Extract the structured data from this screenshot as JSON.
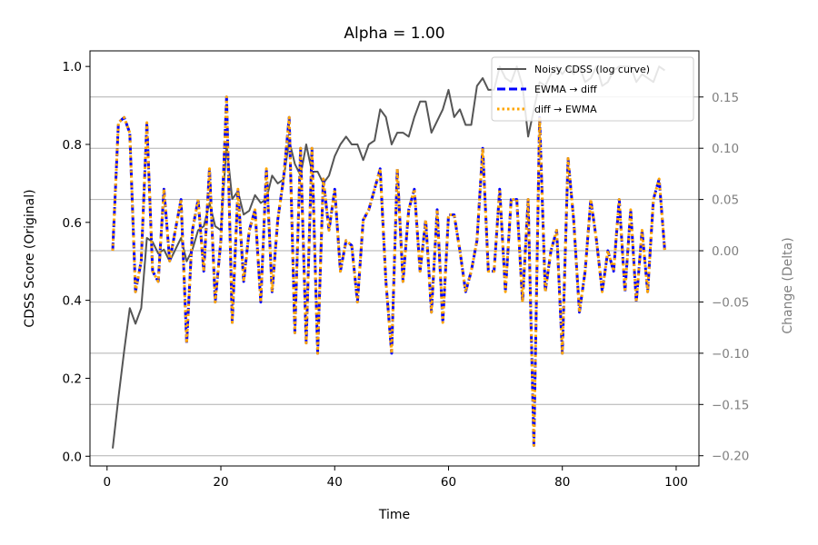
{
  "chart_data": {
    "type": "line",
    "title": "Alpha = 1.00",
    "xlabel": "Time",
    "ylabel": "CDSS Score (Original)",
    "y2label": "Change (Delta)",
    "xlim": [
      -3,
      104
    ],
    "ylim": [
      -0.025,
      1.04
    ],
    "y2lim": [
      -0.21,
      0.195
    ],
    "xticks": [
      0,
      20,
      40,
      60,
      80,
      100
    ],
    "yticks": [
      0.0,
      0.2,
      0.4,
      0.6,
      0.8,
      1.0
    ],
    "y2ticks": [
      -0.2,
      -0.15,
      -0.1,
      -0.05,
      0.0,
      0.05,
      0.1,
      0.15
    ],
    "xtick_labels": [
      "0",
      "20",
      "40",
      "60",
      "80",
      "100"
    ],
    "ytick_labels": [
      "0.0",
      "0.2",
      "0.4",
      "0.6",
      "0.8",
      "1.0"
    ],
    "y2tick_labels": [
      "−0.20",
      "−0.15",
      "−0.10",
      "−0.05",
      "0.00",
      "0.05",
      "0.10",
      "0.15"
    ],
    "grid": "horizontal, on right axis ticks",
    "legend_placement": "upper right",
    "colors": {
      "noisy": "#555555",
      "ewma_diff": "#0000ff",
      "diff_ewma": "#ffa500",
      "right_axis": "#808080"
    },
    "series": [
      {
        "name": "Noisy CDSS (log curve)",
        "axis": "left",
        "x": [
          1,
          2,
          3,
          4,
          5,
          6,
          7,
          8,
          9,
          10,
          11,
          12,
          13,
          14,
          15,
          16,
          17,
          18,
          19,
          20,
          21,
          22,
          23,
          24,
          25,
          26,
          27,
          28,
          29,
          30,
          31,
          32,
          33,
          34,
          35,
          36,
          37,
          38,
          39,
          40,
          41,
          42,
          43,
          44,
          45,
          46,
          47,
          48,
          49,
          50,
          51,
          52,
          53,
          54,
          55,
          56,
          57,
          58,
          59,
          60,
          61,
          62,
          63,
          64,
          65,
          66,
          67,
          68,
          69,
          70,
          71,
          72,
          73,
          74,
          75,
          76,
          77,
          78,
          79,
          80,
          81,
          82,
          83,
          84,
          85,
          86,
          87,
          88,
          89,
          90,
          91,
          92,
          93,
          94,
          95,
          96,
          97,
          98
        ],
        "y": [
          0.02,
          0.15,
          0.27,
          0.38,
          0.34,
          0.38,
          0.56,
          0.55,
          0.52,
          0.53,
          0.5,
          0.53,
          0.56,
          0.5,
          0.53,
          0.58,
          0.59,
          0.65,
          0.59,
          0.58,
          0.8,
          0.66,
          0.68,
          0.62,
          0.63,
          0.67,
          0.65,
          0.66,
          0.72,
          0.7,
          0.71,
          0.81,
          0.75,
          0.72,
          0.8,
          0.73,
          0.73,
          0.7,
          0.72,
          0.77,
          0.8,
          0.82,
          0.8,
          0.8,
          0.76,
          0.8,
          0.81,
          0.89,
          0.87,
          0.8,
          0.83,
          0.83,
          0.82,
          0.87,
          0.91,
          0.91,
          0.83,
          0.86,
          0.89,
          0.94,
          0.87,
          0.89,
          0.85,
          0.85,
          0.95,
          0.97,
          0.94,
          0.94,
          1.0,
          0.97,
          0.96,
          1.0,
          0.95,
          0.82,
          0.89,
          0.96,
          0.95,
          0.98,
          1.0,
          0.98,
          1.0,
          0.98,
          1.0,
          0.96,
          0.97,
          1.0,
          0.95,
          0.96,
          0.99,
          1.0,
          1.0,
          1.0,
          0.96,
          0.98,
          0.97,
          0.96,
          1.0,
          0.99
        ]
      },
      {
        "name": "EWMA → diff",
        "axis": "right",
        "x": [
          1,
          2,
          3,
          4,
          5,
          6,
          7,
          8,
          9,
          10,
          11,
          12,
          13,
          14,
          15,
          16,
          17,
          18,
          19,
          20,
          21,
          22,
          23,
          24,
          25,
          26,
          27,
          28,
          29,
          30,
          31,
          32,
          33,
          34,
          35,
          36,
          37,
          38,
          39,
          40,
          41,
          42,
          43,
          44,
          45,
          46,
          47,
          48,
          49,
          50,
          51,
          52,
          53,
          54,
          55,
          56,
          57,
          58,
          59,
          60,
          61,
          62,
          63,
          64,
          65,
          66,
          67,
          68,
          69,
          70,
          71,
          72,
          73,
          74,
          75,
          76,
          77,
          78,
          79,
          80,
          81,
          82,
          83,
          84,
          85,
          86,
          87,
          88,
          89,
          90,
          91,
          92,
          93,
          94,
          95,
          96,
          97,
          98
        ],
        "y": [
          0.0,
          0.125,
          0.13,
          0.115,
          -0.04,
          -0.01,
          0.125,
          -0.02,
          -0.03,
          0.06,
          -0.01,
          0.02,
          0.05,
          -0.09,
          0.02,
          0.05,
          -0.02,
          0.08,
          -0.05,
          0.01,
          0.15,
          -0.07,
          0.06,
          -0.03,
          0.02,
          0.04,
          -0.05,
          0.08,
          -0.04,
          0.03,
          0.07,
          0.13,
          -0.08,
          0.1,
          -0.09,
          0.1,
          -0.1,
          0.07,
          0.02,
          0.06,
          -0.02,
          0.01,
          0.005,
          -0.05,
          0.03,
          0.04,
          0.06,
          0.08,
          -0.03,
          -0.1,
          0.08,
          -0.03,
          0.04,
          0.06,
          -0.02,
          0.03,
          -0.06,
          0.04,
          -0.07,
          0.035,
          0.035,
          0.0,
          -0.04,
          -0.02,
          0.01,
          0.1,
          -0.02,
          -0.02,
          0.06,
          -0.04,
          0.05,
          0.05,
          -0.05,
          0.05,
          -0.19,
          0.13,
          -0.04,
          0.0,
          0.02,
          -0.1,
          0.09,
          0.03,
          -0.06,
          -0.02,
          0.05,
          0.01,
          -0.04,
          0.0,
          -0.02,
          0.05,
          -0.04,
          0.04,
          -0.05,
          0.02,
          -0.04,
          0.05,
          0.07,
          0.0
        ]
      },
      {
        "name": "diff → EWMA",
        "axis": "right",
        "same_as": "EWMA → diff"
      }
    ]
  }
}
